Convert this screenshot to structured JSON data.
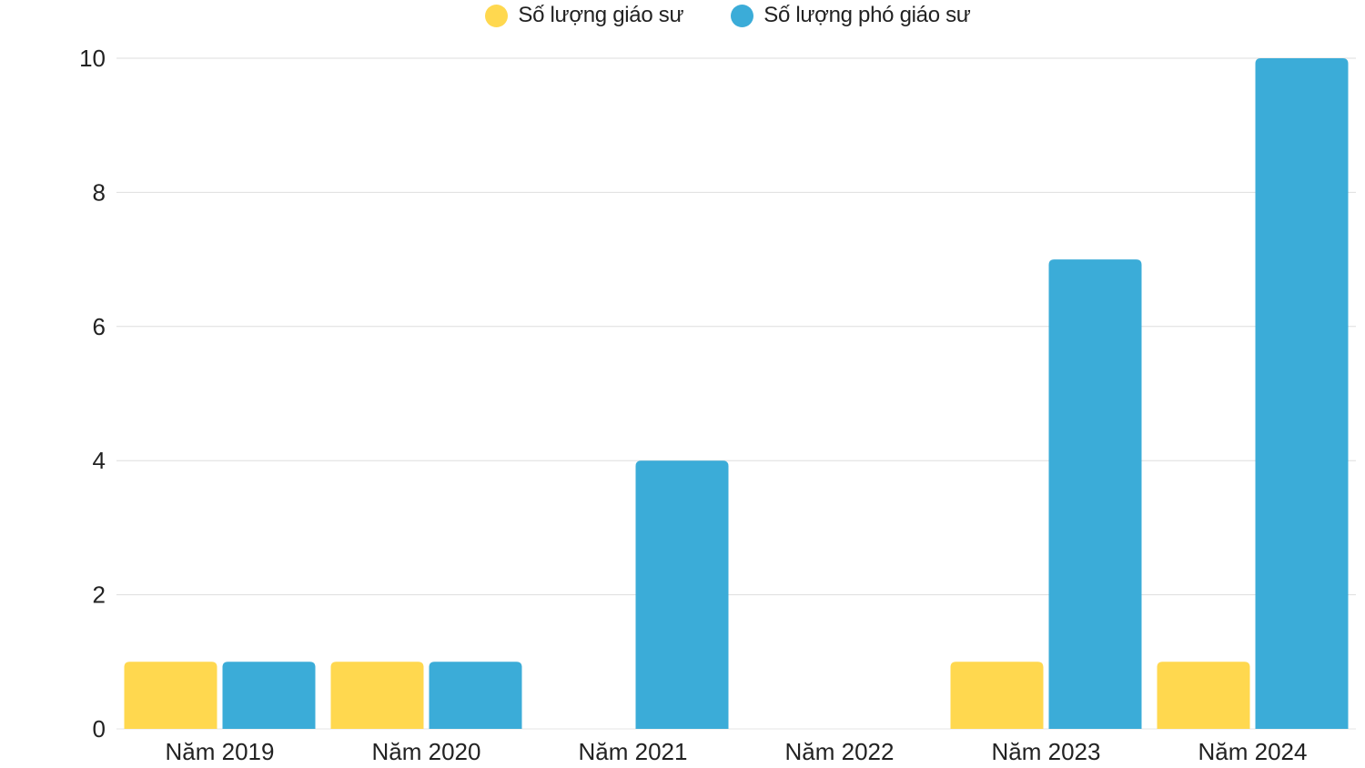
{
  "chart_data": {
    "type": "bar",
    "categories": [
      "Năm 2019",
      "Năm 2020",
      "Năm 2021",
      "Năm 2022",
      "Năm 2023",
      "Năm 2024"
    ],
    "series": [
      {
        "name": "Số lượng giáo sư",
        "color": "#FFD84F",
        "values": [
          1,
          1,
          0,
          0,
          1,
          1
        ]
      },
      {
        "name": "Số lượng phó giáo sư",
        "color": "#3BACD8",
        "values": [
          1,
          1,
          4,
          0,
          7,
          10
        ]
      }
    ],
    "yticks": [
      0,
      2,
      4,
      6,
      8,
      10
    ],
    "ylim": [
      0,
      10
    ],
    "grid": true,
    "legend_position": "top-center",
    "title": "",
    "xlabel": "",
    "ylabel": ""
  }
}
